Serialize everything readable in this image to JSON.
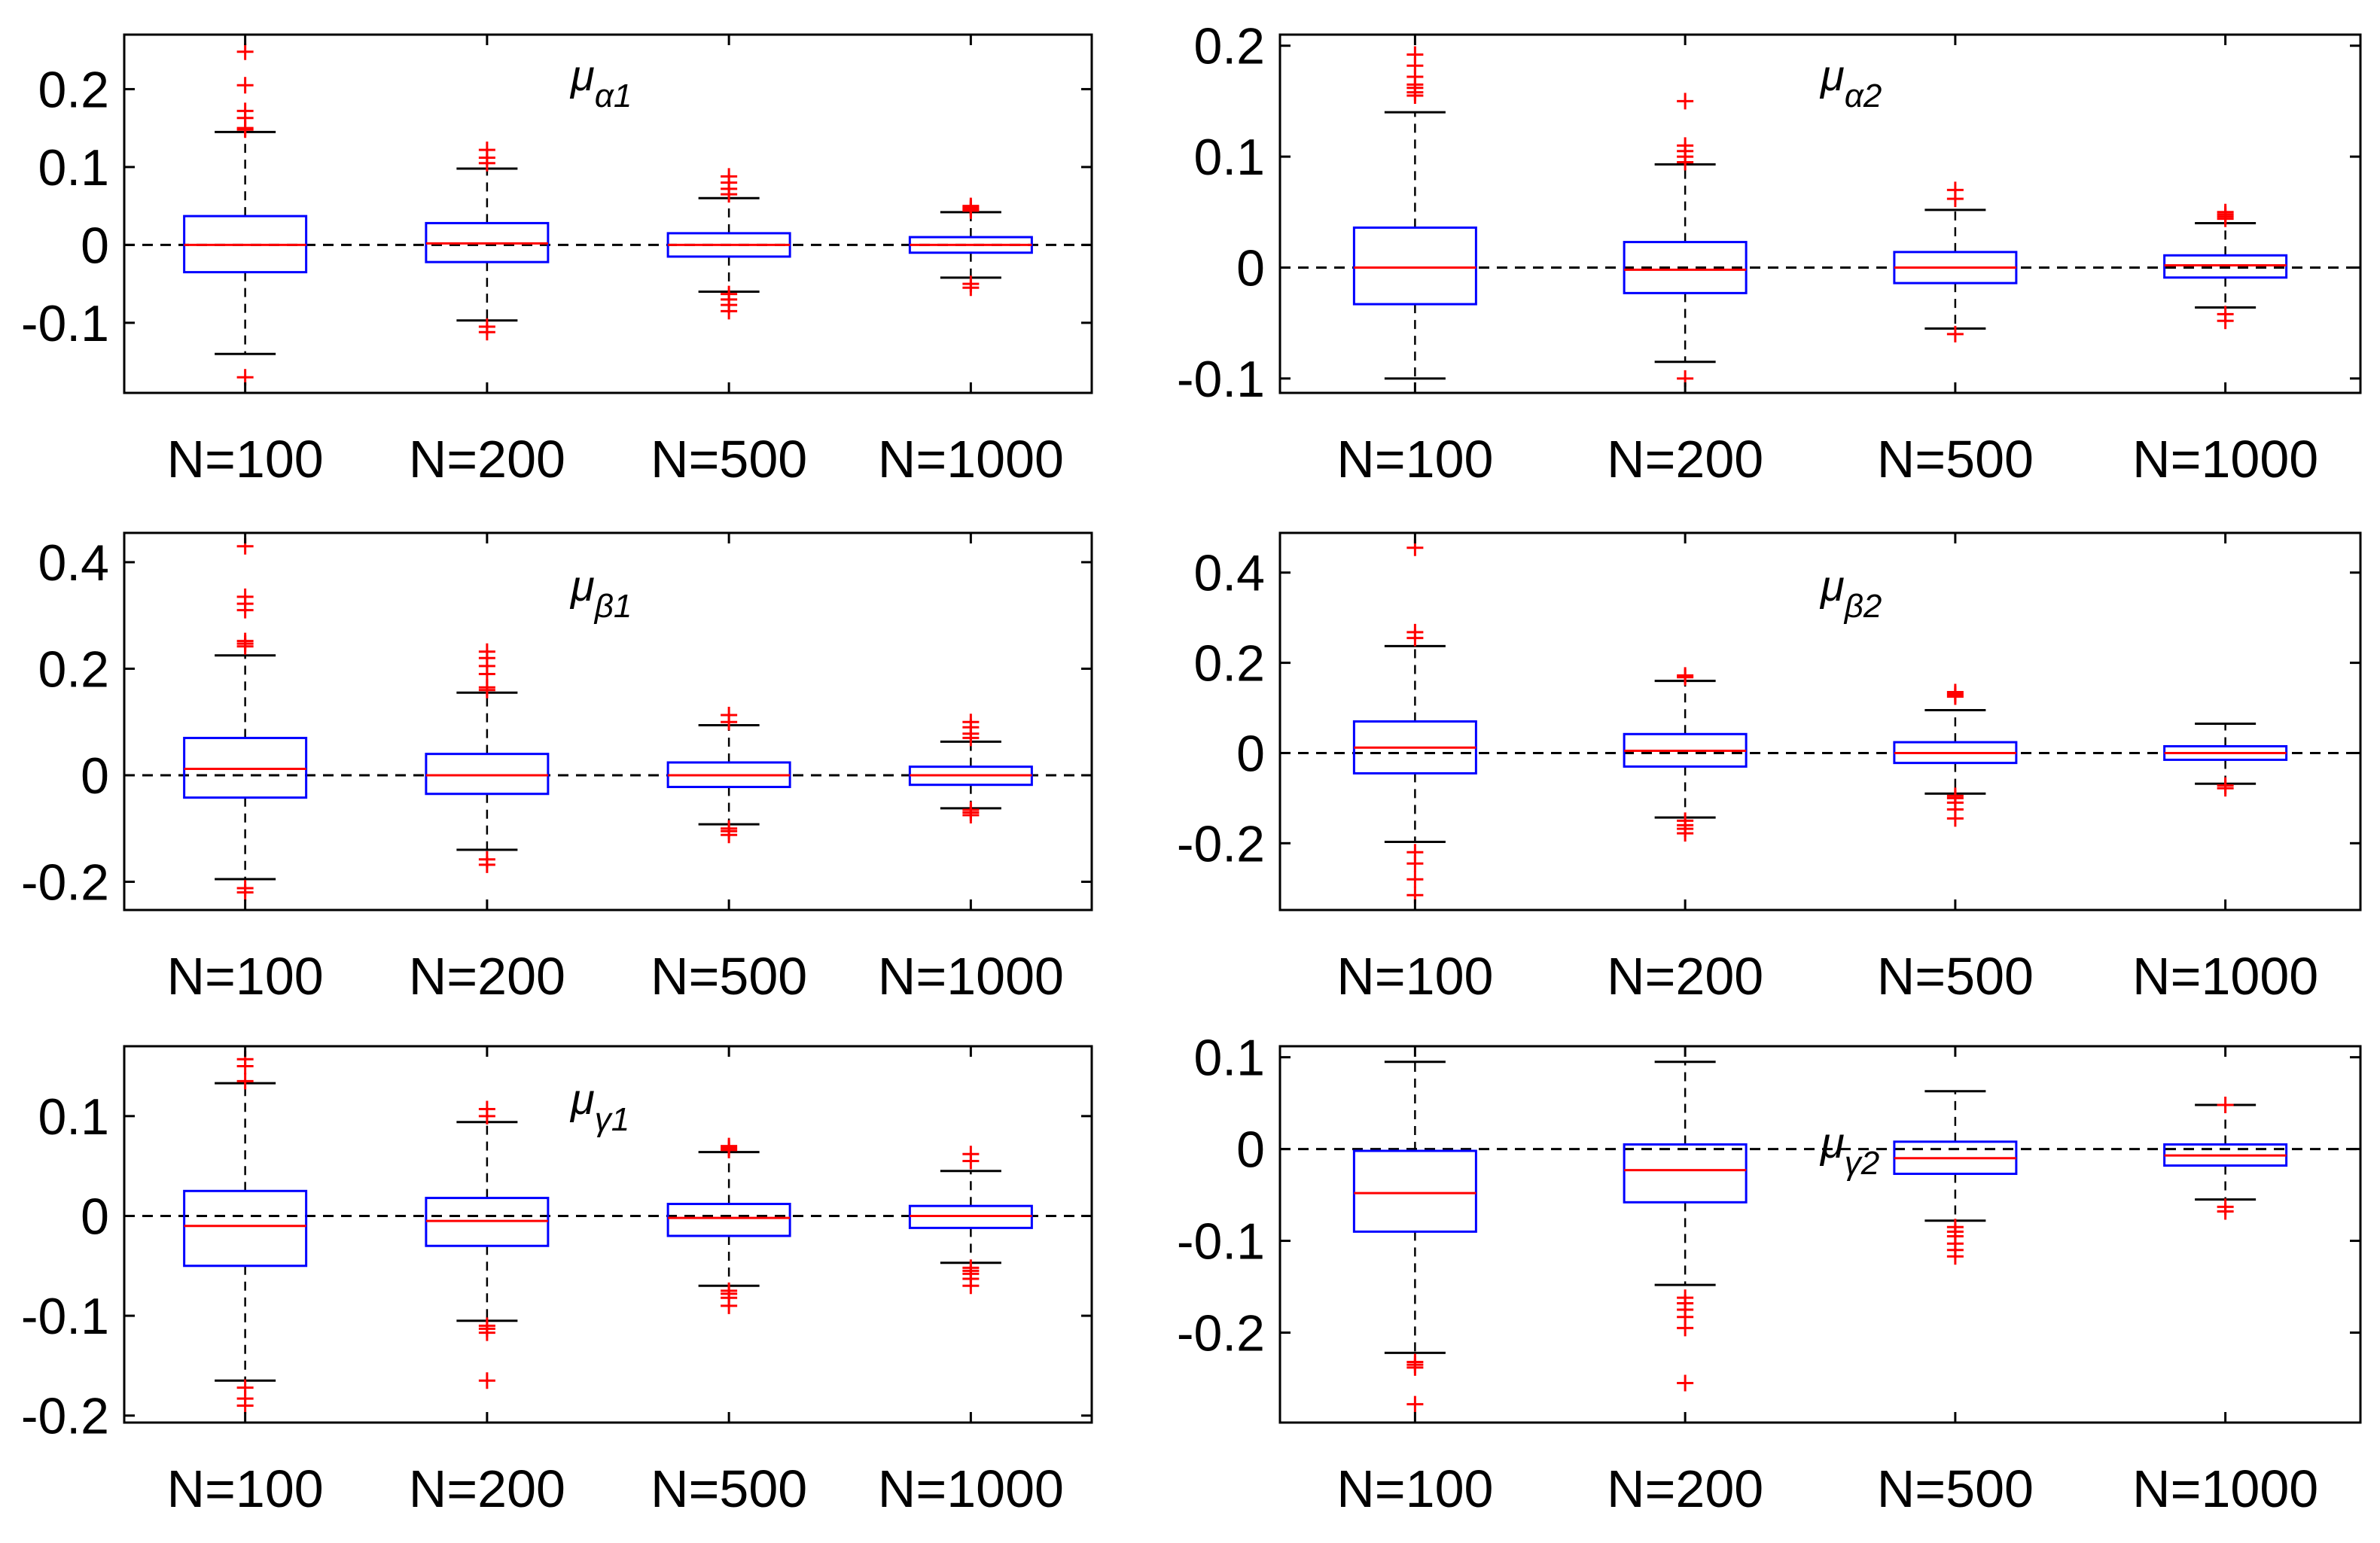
{
  "colors": {
    "box": "#0000ff",
    "median": "#ff0000",
    "outlier": "#ff0000",
    "whisker": "#000000",
    "reference": "#000000",
    "axis": "#000000"
  },
  "chart_data": [
    {
      "type": "boxplot",
      "title_main": "μ",
      "title_sub": "α1",
      "categories": [
        "N=100",
        "N=200",
        "N=500",
        "N=1000"
      ],
      "ylim": [
        -0.19,
        0.27
      ],
      "yticks": [
        -0.1,
        0,
        0.1,
        0.2
      ],
      "yticklabels": [
        "-0.1",
        "0",
        "0.1",
        "0.2"
      ],
      "reference_line": 0,
      "boxes": [
        {
          "q1": -0.035,
          "median": 0.0,
          "q3": 0.037,
          "whisker_low": -0.14,
          "whisker_high": 0.145,
          "outliers": [
            0.148,
            0.15,
            0.163,
            0.172,
            0.205,
            0.248,
            -0.17
          ]
        },
        {
          "q1": -0.022,
          "median": 0.002,
          "q3": 0.028,
          "whisker_low": -0.097,
          "whisker_high": 0.098,
          "outliers": [
            0.105,
            0.112,
            0.122,
            -0.105,
            -0.112
          ]
        },
        {
          "q1": -0.015,
          "median": 0.0,
          "q3": 0.015,
          "whisker_low": -0.06,
          "whisker_high": 0.06,
          "outliers": [
            0.065,
            0.072,
            0.08,
            0.088,
            -0.063,
            -0.07,
            -0.077,
            -0.085
          ]
        },
        {
          "q1": -0.01,
          "median": 0.0,
          "q3": 0.01,
          "whisker_low": -0.042,
          "whisker_high": 0.042,
          "outliers": [
            0.044,
            0.046,
            0.048,
            0.05,
            -0.05,
            -0.055
          ]
        }
      ]
    },
    {
      "type": "boxplot",
      "title_main": "μ",
      "title_sub": "α2",
      "categories": [
        "N=100",
        "N=200",
        "N=500",
        "N=1000"
      ],
      "ylim": [
        -0.113,
        0.21
      ],
      "yticks": [
        -0.1,
        0,
        0.1,
        0.2
      ],
      "yticklabels": [
        "-0.1",
        "0",
        "0.1",
        "0.2"
      ],
      "reference_line": 0,
      "boxes": [
        {
          "q1": -0.033,
          "median": 0.0,
          "q3": 0.036,
          "whisker_low": -0.1,
          "whisker_high": 0.14,
          "outliers": [
            0.155,
            0.158,
            0.162,
            0.165,
            0.172,
            0.182,
            0.192
          ]
        },
        {
          "q1": -0.023,
          "median": -0.002,
          "q3": 0.023,
          "whisker_low": -0.085,
          "whisker_high": 0.093,
          "outliers": [
            0.095,
            0.1,
            0.105,
            0.11,
            0.15,
            -0.1
          ]
        },
        {
          "q1": -0.014,
          "median": 0.0,
          "q3": 0.014,
          "whisker_low": -0.055,
          "whisker_high": 0.052,
          "outliers": [
            0.062,
            0.07,
            -0.06
          ]
        },
        {
          "q1": -0.009,
          "median": 0.002,
          "q3": 0.011,
          "whisker_low": -0.036,
          "whisker_high": 0.04,
          "outliers": [
            0.044,
            0.046,
            0.048,
            0.05,
            -0.042,
            -0.048
          ]
        }
      ]
    },
    {
      "type": "boxplot",
      "title_main": "μ",
      "title_sub": "β1",
      "categories": [
        "N=100",
        "N=200",
        "N=500",
        "N=1000"
      ],
      "ylim": [
        -0.253,
        0.455
      ],
      "yticks": [
        -0.2,
        0,
        0.2,
        0.4
      ],
      "yticklabels": [
        "-0.2",
        "0",
        "0.2",
        "0.4"
      ],
      "reference_line": 0,
      "boxes": [
        {
          "q1": -0.042,
          "median": 0.012,
          "q3": 0.07,
          "whisker_low": -0.195,
          "whisker_high": 0.225,
          "outliers": [
            0.242,
            0.247,
            0.252,
            0.31,
            0.322,
            0.335,
            0.43,
            -0.212,
            -0.22
          ]
        },
        {
          "q1": -0.035,
          "median": 0.0,
          "q3": 0.04,
          "whisker_low": -0.14,
          "whisker_high": 0.155,
          "outliers": [
            0.16,
            0.165,
            0.19,
            0.205,
            0.22,
            0.232,
            -0.158,
            -0.168
          ]
        },
        {
          "q1": -0.022,
          "median": 0.0,
          "q3": 0.024,
          "whisker_low": -0.092,
          "whisker_high": 0.094,
          "outliers": [
            0.1,
            0.113,
            -0.1,
            -0.105,
            -0.112
          ]
        },
        {
          "q1": -0.018,
          "median": 0.0,
          "q3": 0.016,
          "whisker_low": -0.062,
          "whisker_high": 0.063,
          "outliers": [
            0.07,
            0.078,
            0.09,
            0.1,
            -0.065,
            -0.07,
            -0.075
          ]
        }
      ]
    },
    {
      "type": "boxplot",
      "title_main": "μ",
      "title_sub": "β2",
      "categories": [
        "N=100",
        "N=200",
        "N=500",
        "N=1000"
      ],
      "ylim": [
        -0.348,
        0.488
      ],
      "yticks": [
        -0.2,
        0,
        0.2,
        0.4
      ],
      "yticklabels": [
        "-0.2",
        "0",
        "0.2",
        "0.4"
      ],
      "reference_line": 0,
      "boxes": [
        {
          "q1": -0.045,
          "median": 0.012,
          "q3": 0.07,
          "whisker_low": -0.197,
          "whisker_high": 0.237,
          "outliers": [
            0.255,
            0.268,
            0.455,
            -0.22,
            -0.245,
            -0.28,
            -0.315
          ]
        },
        {
          "q1": -0.03,
          "median": 0.005,
          "q3": 0.042,
          "whisker_low": -0.143,
          "whisker_high": 0.16,
          "outliers": [
            0.168,
            0.172,
            -0.15,
            -0.16,
            -0.168,
            -0.178
          ]
        },
        {
          "q1": -0.022,
          "median": 0.0,
          "q3": 0.024,
          "whisker_low": -0.09,
          "whisker_high": 0.095,
          "outliers": [
            0.125,
            0.13,
            0.135,
            -0.095,
            -0.1,
            -0.11,
            -0.125,
            -0.145
          ]
        },
        {
          "q1": -0.015,
          "median": 0.0,
          "q3": 0.015,
          "whisker_low": -0.068,
          "whisker_high": 0.065,
          "outliers": [
            -0.072,
            -0.078
          ]
        }
      ]
    },
    {
      "type": "boxplot",
      "title_main": "μ",
      "title_sub": "γ1",
      "categories": [
        "N=100",
        "N=200",
        "N=500",
        "N=1000"
      ],
      "ylim": [
        -0.207,
        0.17
      ],
      "yticks": [
        -0.2,
        -0.1,
        0,
        0.1
      ],
      "yticklabels": [
        "-0.2",
        "-0.1",
        "0",
        "0.1"
      ],
      "reference_line": 0,
      "boxes": [
        {
          "q1": -0.05,
          "median": -0.01,
          "q3": 0.025,
          "whisker_low": -0.165,
          "whisker_high": 0.133,
          "outliers": [
            0.135,
            0.15,
            0.157,
            -0.172,
            -0.183,
            -0.19
          ]
        },
        {
          "q1": -0.03,
          "median": -0.005,
          "q3": 0.018,
          "whisker_low": -0.105,
          "whisker_high": 0.094,
          "outliers": [
            0.1,
            0.107,
            -0.11,
            -0.113,
            -0.117,
            -0.165
          ]
        },
        {
          "q1": -0.02,
          "median": -0.002,
          "q3": 0.012,
          "whisker_low": -0.07,
          "whisker_high": 0.064,
          "outliers": [
            0.066,
            0.068,
            0.07,
            -0.075,
            -0.078,
            -0.082,
            -0.09
          ]
        },
        {
          "q1": -0.012,
          "median": 0.0,
          "q3": 0.01,
          "whisker_low": -0.047,
          "whisker_high": 0.045,
          "outliers": [
            0.055,
            0.062,
            -0.052,
            -0.055,
            -0.058,
            -0.063,
            -0.07
          ]
        }
      ]
    },
    {
      "type": "boxplot",
      "title_main": "μ",
      "title_sub": "γ2",
      "categories": [
        "N=100",
        "N=200",
        "N=500",
        "N=1000"
      ],
      "ylim": [
        -0.298,
        0.112
      ],
      "yticks": [
        -0.2,
        -0.1,
        0,
        0.1
      ],
      "yticklabels": [
        "-0.2",
        "-0.1",
        "0",
        "0.1"
      ],
      "reference_line": 0,
      "boxes": [
        {
          "q1": -0.09,
          "median": -0.048,
          "q3": -0.002,
          "whisker_low": -0.222,
          "whisker_high": 0.095,
          "outliers": [
            -0.232,
            -0.235,
            -0.238,
            -0.278
          ]
        },
        {
          "q1": -0.058,
          "median": -0.023,
          "q3": 0.005,
          "whisker_low": -0.148,
          "whisker_high": 0.095,
          "outliers": [
            -0.162,
            -0.168,
            -0.175,
            -0.183,
            -0.195,
            -0.255
          ]
        },
        {
          "q1": -0.027,
          "median": -0.01,
          "q3": 0.008,
          "whisker_low": -0.078,
          "whisker_high": 0.063,
          "outliers": [
            -0.085,
            -0.09,
            -0.095,
            -0.103,
            -0.11,
            -0.117
          ]
        },
        {
          "q1": -0.018,
          "median": -0.007,
          "q3": 0.005,
          "whisker_low": -0.055,
          "whisker_high": 0.048,
          "outliers": [
            0.048,
            -0.063,
            -0.068
          ]
        }
      ]
    }
  ]
}
